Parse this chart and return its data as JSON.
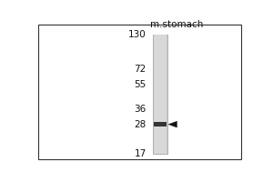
{
  "outer_bg": "#ffffff",
  "lane_label": "m.stomach",
  "mw_markers": [
    130,
    72,
    55,
    36,
    28,
    17
  ],
  "band_mw": 28,
  "border_color": "#333333",
  "text_color": "#111111",
  "band_color": "#222222",
  "arrow_color": "#111111",
  "lane_bg_color": "#cccccc",
  "lane_inner_color": "#d8d8d8"
}
